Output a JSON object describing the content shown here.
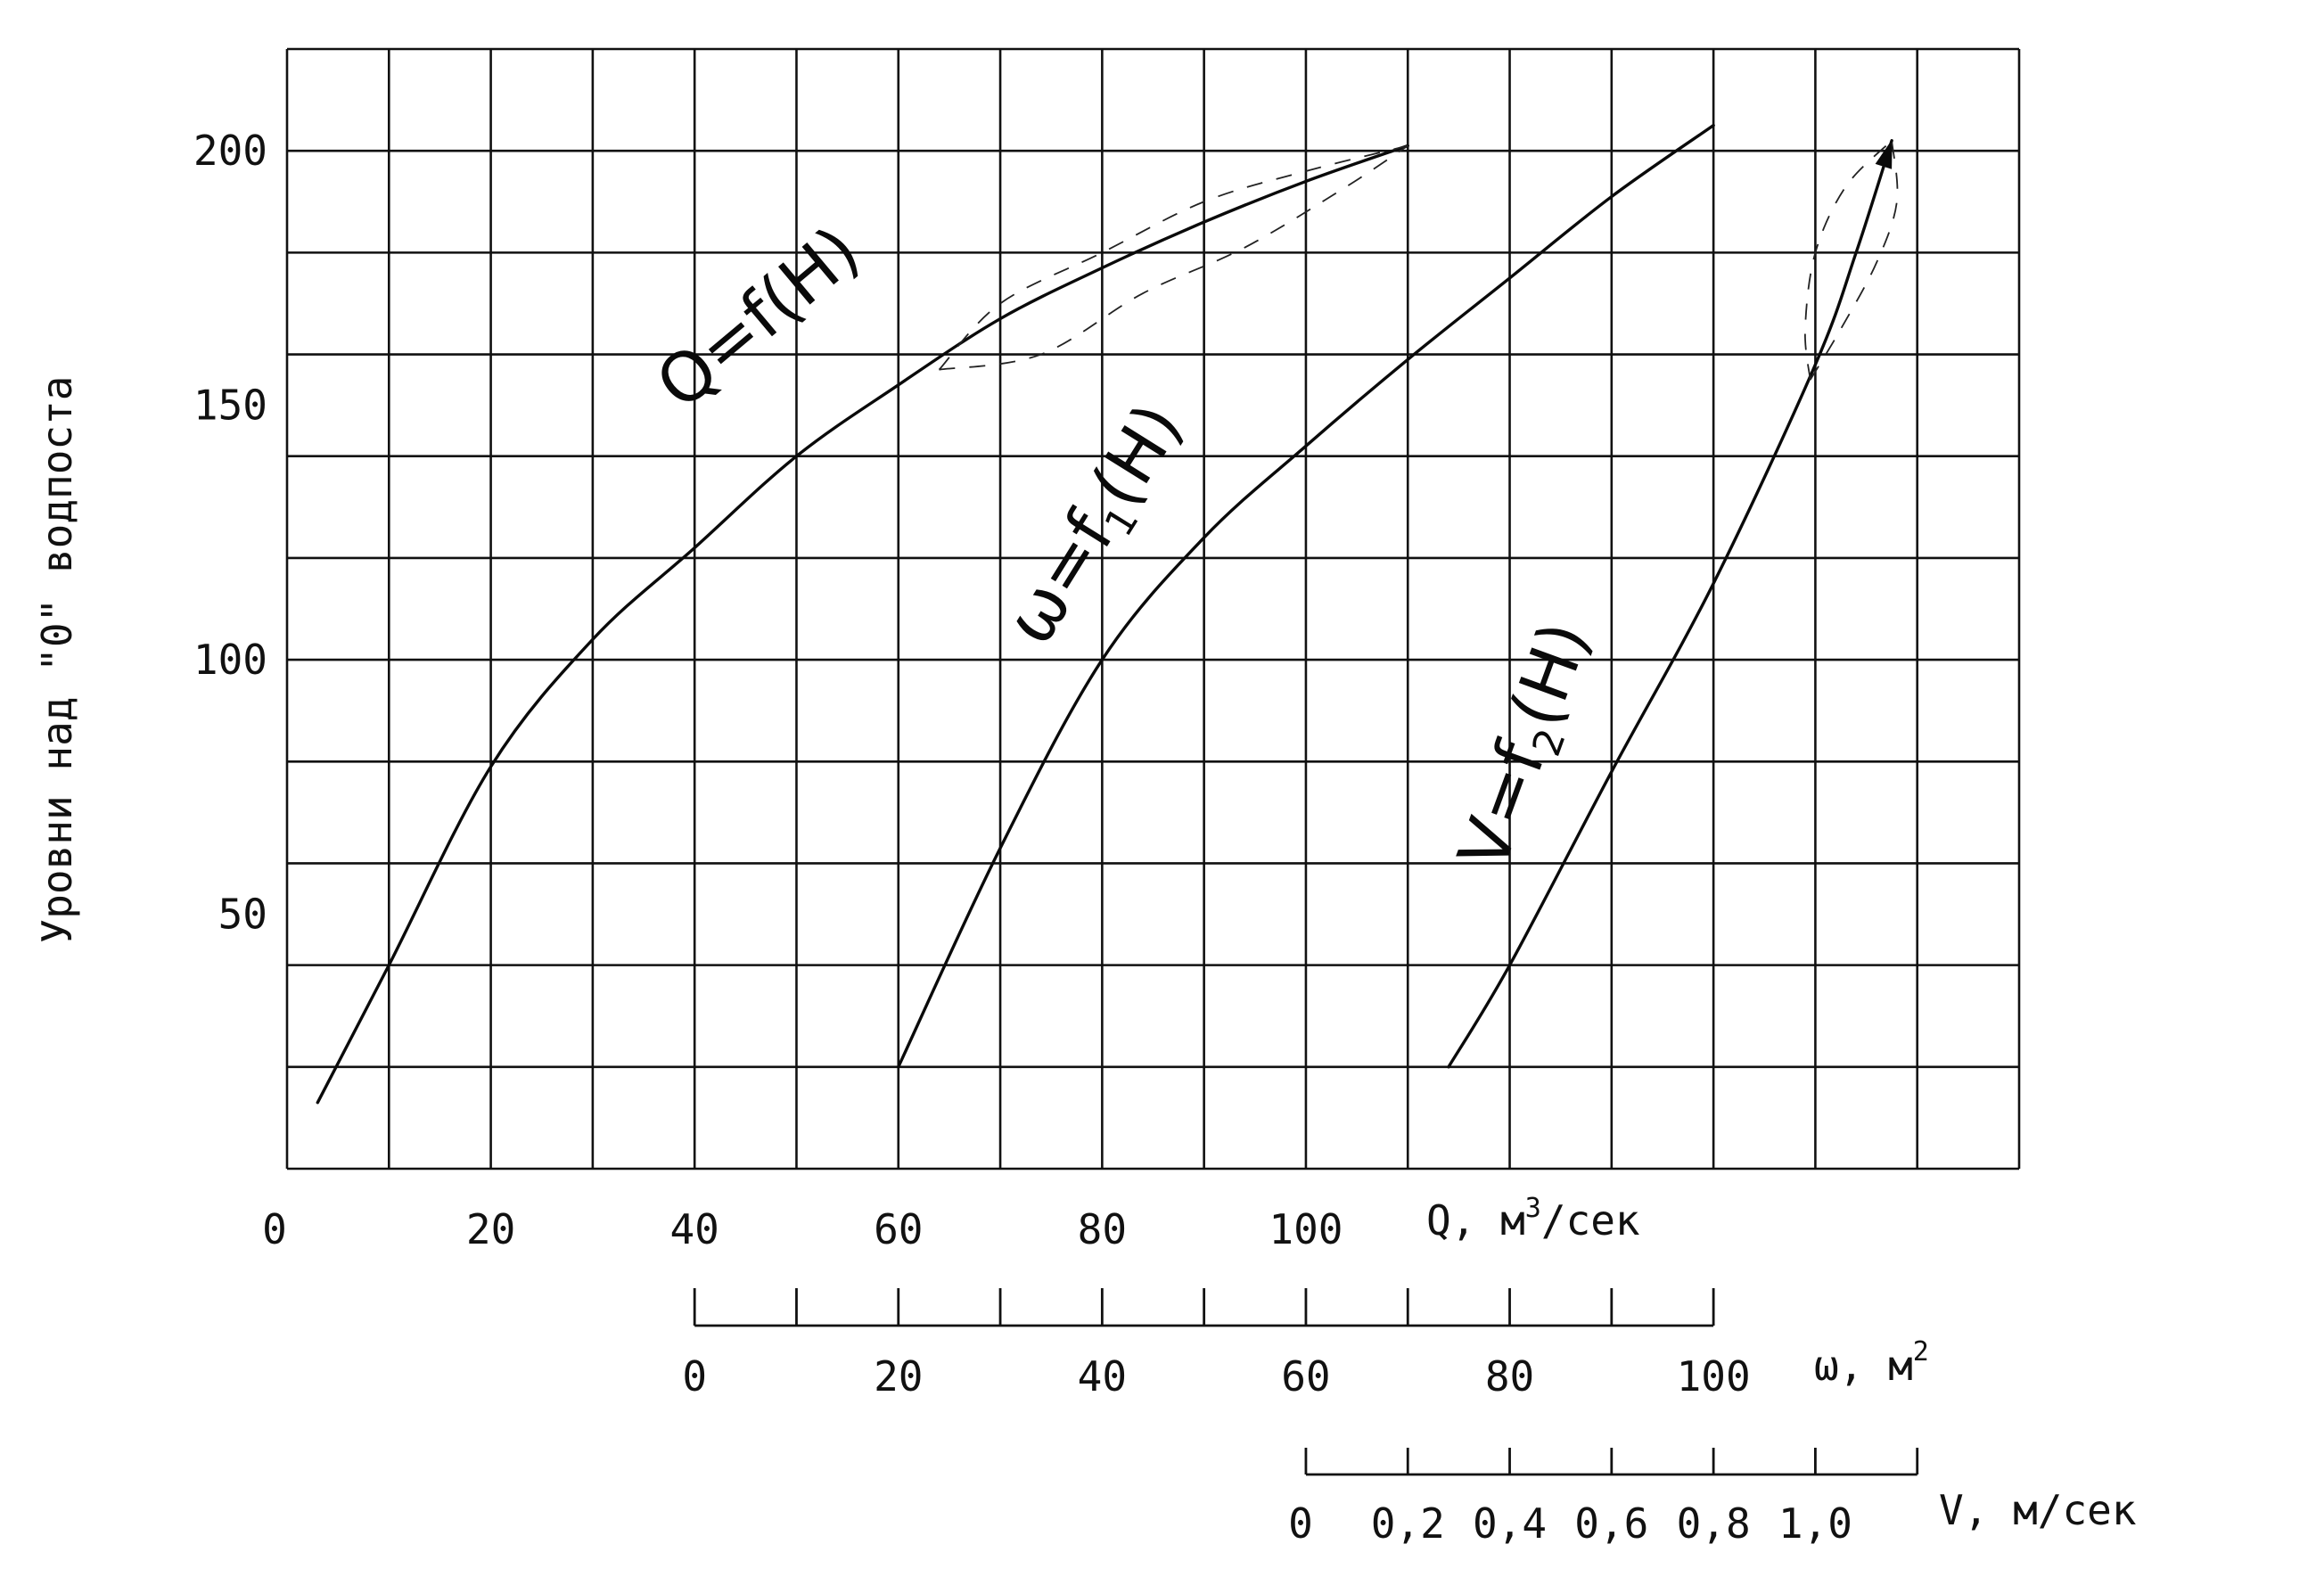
{
  "chart_data": {
    "type": "line",
    "ylabel": "Уровни над \"0\" водпоста",
    "ylim": [
      0,
      220
    ],
    "yticks": [
      "50",
      "100",
      "150",
      "200"
    ],
    "grid": true,
    "axes": {
      "Q": {
        "label_main": "Q, м",
        "label_sup": "3",
        "label_tail": "/сек",
        "range": [
          0,
          170
        ],
        "ticks": [
          "0",
          "20",
          "40",
          "60",
          "80",
          "100"
        ]
      },
      "omega": {
        "label": "ω, м",
        "label_sup": "2",
        "range": [
          0,
          100
        ],
        "ticks": [
          "0",
          "20",
          "40",
          "60",
          "80",
          "100"
        ]
      },
      "V": {
        "label": "V, м/сек",
        "range": [
          0,
          1.2
        ],
        "ticks": [
          "0",
          "0,2",
          "0,4",
          "0,6",
          "0,8",
          "1,0"
        ]
      }
    },
    "series": [
      {
        "name": "Q=f(H)",
        "label_text": "Q=f(H)",
        "axis": "Q",
        "x": [
          3,
          10,
          20,
          30,
          40,
          50,
          60,
          70,
          80,
          90,
          100,
          110
        ],
        "y": [
          13,
          40,
          79,
          104,
          122,
          140,
          154,
          167,
          177,
          186,
          194,
          201
        ]
      },
      {
        "name": "ω=f1(H)",
        "label_main": "ω=f",
        "label_sub": "1",
        "label_tail": "(H)",
        "axis": "omega",
        "x": [
          20,
          30,
          40,
          50,
          60,
          70,
          80,
          90,
          100
        ],
        "y": [
          20,
          63,
          100,
          124,
          142,
          159,
          175,
          191,
          205
        ]
      },
      {
        "name": "V=f2(H)",
        "label_main": "V=f",
        "label_sub": "2",
        "label_tail": "(H)",
        "axis": "V",
        "x": [
          0.28,
          0.4,
          0.6,
          0.8,
          1.0,
          1.08,
          1.15
        ],
        "y": [
          20,
          40,
          78,
          115,
          158,
          180,
          202
        ]
      }
    ],
    "annotations": [
      {
        "type": "dashed-lens",
        "axis": "Q",
        "outer": [
          [
            64,
            157
          ],
          [
            70,
            170
          ],
          [
            80,
            180
          ],
          [
            90,
            190
          ],
          [
            100,
            196
          ],
          [
            110,
            201
          ]
        ],
        "inner": [
          [
            64,
            157
          ],
          [
            74,
            160
          ],
          [
            84,
            172
          ],
          [
            94,
            181
          ],
          [
            104,
            193
          ],
          [
            110,
            201
          ]
        ]
      },
      {
        "type": "dashed-lens",
        "axis": "V",
        "outer": [
          [
            0.99,
            155
          ],
          [
            0.98,
            165
          ],
          [
            1.0,
            180
          ],
          [
            1.06,
            193
          ],
          [
            1.15,
            202
          ]
        ],
        "inner": [
          [
            0.99,
            155
          ],
          [
            1.05,
            165
          ],
          [
            1.12,
            178
          ],
          [
            1.16,
            190
          ],
          [
            1.15,
            202
          ]
        ]
      }
    ]
  }
}
